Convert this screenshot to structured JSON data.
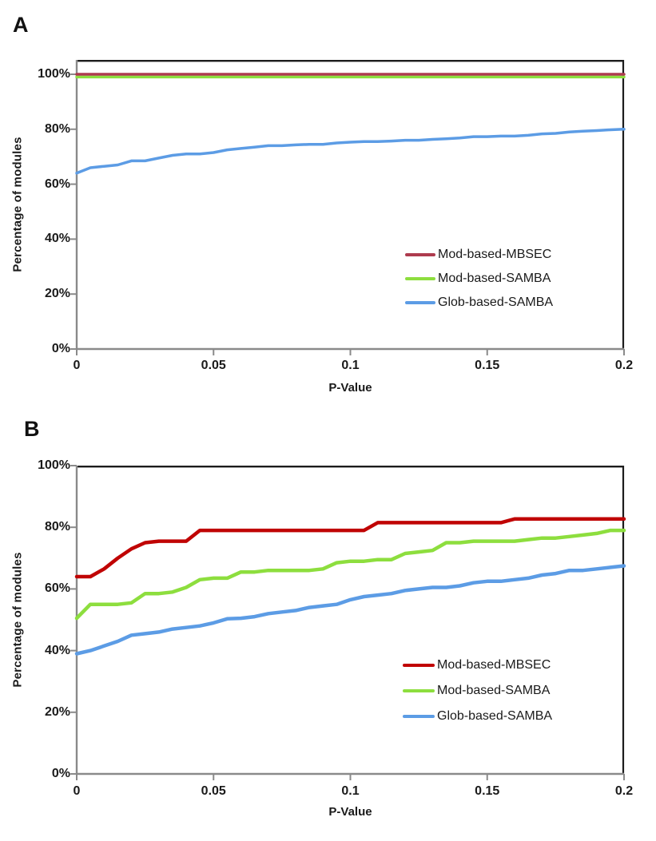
{
  "figure": {
    "panels": [
      {
        "label": "A",
        "y_axis_title": "Percentage of modules",
        "x_axis_title": "P-Value",
        "y_ticks": [
          "100%",
          "80%",
          "60%",
          "40%",
          "20%",
          "0%"
        ],
        "x_ticks": [
          "0",
          "0.05",
          "0.1",
          "0.15",
          "0.2"
        ]
      },
      {
        "label": "B",
        "y_axis_title": "Percentage of modules",
        "x_axis_title": "P-Value",
        "y_ticks": [
          "100%",
          "80%",
          "60%",
          "40%",
          "20%",
          "0%"
        ],
        "x_ticks": [
          "0",
          "0.05",
          "0.1",
          "0.15",
          "0.2"
        ]
      }
    ]
  },
  "chart_data": [
    {
      "type": "line",
      "panel": "A",
      "title": "",
      "xlabel": "P-Value",
      "ylabel": "Percentage of modules",
      "xlim": [
        0,
        0.2
      ],
      "ylim": [
        0,
        100
      ],
      "y_tick_format": "percent",
      "grid": false,
      "legend_position": "inside-right-middle",
      "x": [
        0,
        0.005,
        0.01,
        0.015,
        0.02,
        0.025,
        0.03,
        0.035,
        0.04,
        0.045,
        0.05,
        0.055,
        0.06,
        0.065,
        0.07,
        0.075,
        0.08,
        0.085,
        0.09,
        0.095,
        0.1,
        0.105,
        0.11,
        0.115,
        0.12,
        0.125,
        0.13,
        0.135,
        0.14,
        0.145,
        0.15,
        0.155,
        0.16,
        0.165,
        0.17,
        0.175,
        0.18,
        0.185,
        0.19,
        0.195,
        0.2
      ],
      "series": [
        {
          "name": "Mod-based-MBSEC",
          "color": "#ae3b4e",
          "values": [
            100,
            100,
            100,
            100,
            100,
            100,
            100,
            100,
            100,
            100,
            100,
            100,
            100,
            100,
            100,
            100,
            100,
            100,
            100,
            100,
            100,
            100,
            100,
            100,
            100,
            100,
            100,
            100,
            100,
            100,
            100,
            100,
            100,
            100,
            100,
            100,
            100,
            100,
            100,
            100,
            100
          ]
        },
        {
          "name": "Mod-based-SAMBA",
          "color": "#8dde3e",
          "values": [
            99,
            99,
            99,
            99,
            99,
            99,
            99,
            99,
            99,
            99,
            99,
            99,
            99,
            99,
            99,
            99,
            99,
            99,
            99,
            99,
            99,
            99,
            99,
            99,
            99,
            99,
            99,
            99,
            99,
            99,
            99,
            99,
            99,
            99,
            99,
            99,
            99,
            99,
            99,
            99,
            99
          ]
        },
        {
          "name": "Glob-based-SAMBA",
          "color": "#5c9ce5",
          "values": [
            64,
            66,
            66.5,
            67,
            68.5,
            68.5,
            69.5,
            70.5,
            71,
            71,
            71.5,
            72.5,
            73,
            73.5,
            74,
            74,
            74.3,
            74.5,
            74.5,
            75,
            75.3,
            75.5,
            75.5,
            75.7,
            76,
            76,
            76.3,
            76.5,
            76.8,
            77.3,
            77.3,
            77.5,
            77.5,
            77.8,
            78.3,
            78.5,
            79,
            79.3,
            79.5,
            79.8,
            80
          ]
        }
      ]
    },
    {
      "type": "line",
      "panel": "B",
      "title": "",
      "xlabel": "P-Value",
      "ylabel": "Percentage of modules",
      "xlim": [
        0,
        0.2
      ],
      "ylim": [
        0,
        100
      ],
      "y_tick_format": "percent",
      "grid": false,
      "legend_position": "inside-right-lower",
      "x": [
        0,
        0.005,
        0.01,
        0.015,
        0.02,
        0.025,
        0.03,
        0.035,
        0.04,
        0.045,
        0.05,
        0.055,
        0.06,
        0.065,
        0.07,
        0.075,
        0.08,
        0.085,
        0.09,
        0.095,
        0.1,
        0.105,
        0.11,
        0.115,
        0.12,
        0.125,
        0.13,
        0.135,
        0.14,
        0.145,
        0.15,
        0.155,
        0.16,
        0.165,
        0.17,
        0.175,
        0.18,
        0.185,
        0.19,
        0.195,
        0.2
      ],
      "series": [
        {
          "name": "Mod-based-MBSEC",
          "color": "#c00404",
          "values": [
            64,
            64,
            66.5,
            70,
            73,
            75,
            75.5,
            75.5,
            75.5,
            79,
            79,
            79,
            79,
            79,
            79,
            79,
            79,
            79,
            79,
            79,
            79,
            79,
            81.5,
            81.5,
            81.5,
            81.5,
            81.5,
            81.5,
            81.5,
            81.5,
            81.5,
            81.5,
            82.7,
            82.7,
            82.7,
            82.7,
            82.7,
            82.7,
            82.7,
            82.7,
            82.7
          ]
        },
        {
          "name": "Mod-based-SAMBA",
          "color": "#8dde3e",
          "values": [
            50.5,
            55,
            55,
            55,
            55.5,
            58.5,
            58.5,
            59,
            60.5,
            63,
            63.5,
            63.5,
            65.5,
            65.5,
            66,
            66,
            66,
            66,
            66.5,
            68.5,
            69,
            69,
            69.5,
            69.5,
            71.5,
            72,
            72.5,
            75,
            75,
            75.5,
            75.5,
            75.5,
            75.5,
            76,
            76.5,
            76.5,
            77,
            77.5,
            78,
            79,
            79
          ]
        },
        {
          "name": "Glob-based-SAMBA",
          "color": "#5c9ce5",
          "values": [
            39,
            40,
            41.5,
            43,
            45,
            45.5,
            46,
            47,
            47.5,
            48,
            49,
            50.3,
            50.5,
            51,
            52,
            52.5,
            53,
            54,
            54.5,
            55,
            56.5,
            57.5,
            58,
            58.5,
            59.5,
            60,
            60.5,
            60.5,
            61,
            62,
            62.5,
            62.5,
            63,
            63.5,
            64.5,
            65,
            66,
            66,
            66.5,
            67,
            67.5
          ]
        }
      ]
    }
  ]
}
